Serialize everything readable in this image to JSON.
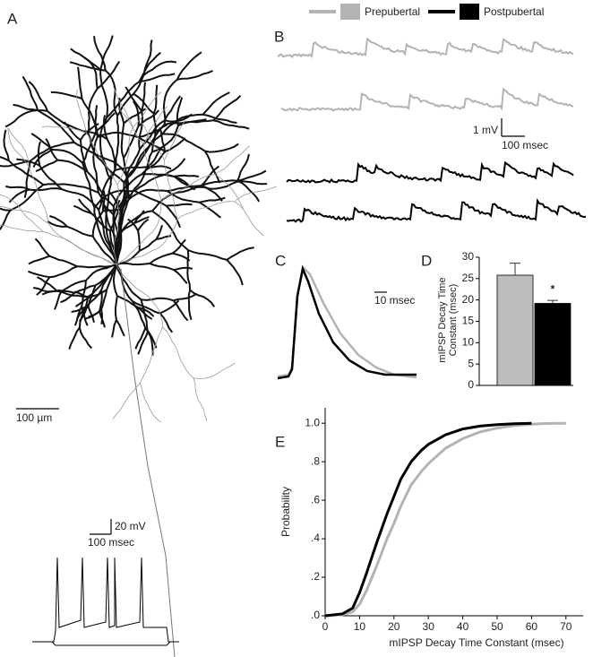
{
  "panel_labels": [
    "A",
    "B",
    "C",
    "D",
    "E"
  ],
  "legend": [
    {
      "name": "Prepubertal",
      "color": "#b3b3b3"
    },
    {
      "name": "Postpubertal",
      "color": "#000000"
    }
  ],
  "scale_bars": {
    "a_length": "100 µm",
    "a_voltage": "20 mV",
    "a_time": "100 msec",
    "b_voltage": "1 mV",
    "b_time": "100 msec",
    "c_time": "10 msec"
  },
  "chart_data": [
    {
      "type": "bar",
      "ylabel": "mIPSP Decay Time Constant (msec)",
      "categories": [
        null,
        null
      ],
      "values": [
        25.8,
        19.2
      ],
      "errors": [
        2.8,
        0.7
      ],
      "colors": [
        "#bdbdbd",
        "#000000"
      ],
      "annotation": "*",
      "ylim": [
        0,
        30
      ],
      "yticks": [
        0,
        5,
        10,
        15,
        20,
        25,
        30
      ]
    },
    {
      "type": "line",
      "xlabel": "mIPSP Decay Time Constant (msec)",
      "ylabel": "Probability",
      "x": [
        0,
        5,
        8,
        10,
        12,
        15,
        18,
        20,
        22,
        25,
        28,
        30,
        35,
        40,
        45,
        50,
        55,
        60,
        65,
        70
      ],
      "series": [
        {
          "name": "Prepubertal",
          "color": "#b3b3b3",
          "values": [
            0,
            0.005,
            0.02,
            0.06,
            0.13,
            0.26,
            0.4,
            0.48,
            0.57,
            0.68,
            0.75,
            0.79,
            0.87,
            0.92,
            0.955,
            0.975,
            0.988,
            0.995,
            0.999,
            1.0
          ]
        },
        {
          "name": "Postpubertal",
          "color": "#000000",
          "values": [
            0,
            0.01,
            0.04,
            0.12,
            0.22,
            0.38,
            0.53,
            0.62,
            0.71,
            0.8,
            0.86,
            0.89,
            0.94,
            0.97,
            0.985,
            0.993,
            0.997,
            1.0,
            null,
            null
          ]
        }
      ],
      "xlim": [
        0,
        75
      ],
      "xticks": [
        0,
        10,
        20,
        30,
        40,
        50,
        60,
        70
      ],
      "ylim": [
        0,
        1.08
      ],
      "yticks": [
        {
          "value": 0,
          "label": ".0"
        },
        {
          "value": 0.2,
          "label": ".2"
        },
        {
          "value": 0.4,
          "label": ".4"
        },
        {
          "value": 0.6,
          "label": ".6"
        },
        {
          "value": 0.8,
          "label": ".8"
        },
        {
          "value": 1.0,
          "label": "1.0"
        }
      ]
    }
  ]
}
